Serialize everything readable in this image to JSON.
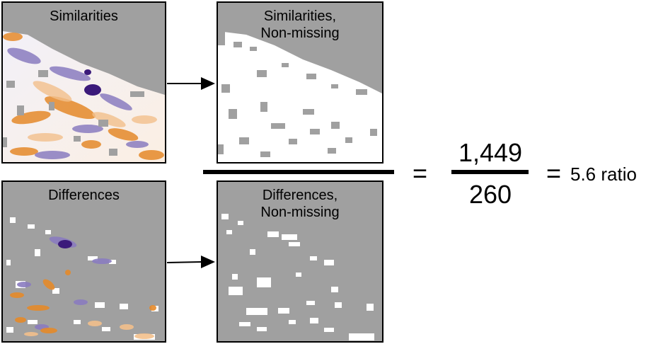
{
  "panels": {
    "similarities": {
      "title": "Similarities"
    },
    "similarities_nonmissing": {
      "title_line1": "Similarities,",
      "title_line2": "Non-missing"
    },
    "differences": {
      "title": "Differences"
    },
    "differences_nonmissing": {
      "title_line1": "Differences,",
      "title_line2": "Non-missing"
    }
  },
  "equation": {
    "equals_sign": "=",
    "numerator": "1,449",
    "denominator": "260",
    "result_equals": "=",
    "result_value": "5.6 ratio"
  },
  "colors": {
    "missing_gray": "#a0a0a0",
    "orange": "#e07a10",
    "purple": "#3b1a7a",
    "white": "#ffffff"
  }
}
